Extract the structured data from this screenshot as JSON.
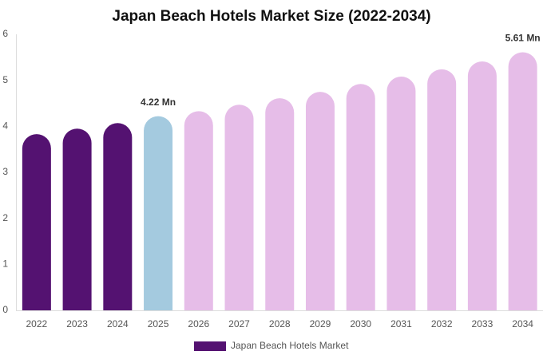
{
  "chart_data": {
    "type": "bar",
    "title": "Japan Beach Hotels Market Size (2022-2034)",
    "categories": [
      "2022",
      "2023",
      "2024",
      "2025",
      "2026",
      "2027",
      "2028",
      "2029",
      "2030",
      "2031",
      "2032",
      "2033",
      "2034"
    ],
    "series": [
      {
        "name": "Japan Beach Hotels Market",
        "color": "#541271",
        "colors": [
          "#541271",
          "#541271",
          "#541271",
          "#a4cadf",
          "#e6bde8",
          "#e6bde8",
          "#e6bde8",
          "#e6bde8",
          "#e6bde8",
          "#e6bde8",
          "#e6bde8",
          "#e6bde8",
          "#e6bde8"
        ],
        "values": [
          3.83,
          3.95,
          4.07,
          4.22,
          4.33,
          4.47,
          4.61,
          4.75,
          4.92,
          5.08,
          5.24,
          5.41,
          5.61
        ],
        "value_labels": [
          null,
          null,
          null,
          "4.22 Mn",
          null,
          null,
          null,
          null,
          null,
          null,
          null,
          null,
          "5.61 Mn"
        ]
      }
    ],
    "ylim": [
      0,
      6
    ],
    "yticks": [
      0,
      1,
      2,
      3,
      4,
      5,
      6
    ],
    "grid": false,
    "legend": "bottom"
  }
}
